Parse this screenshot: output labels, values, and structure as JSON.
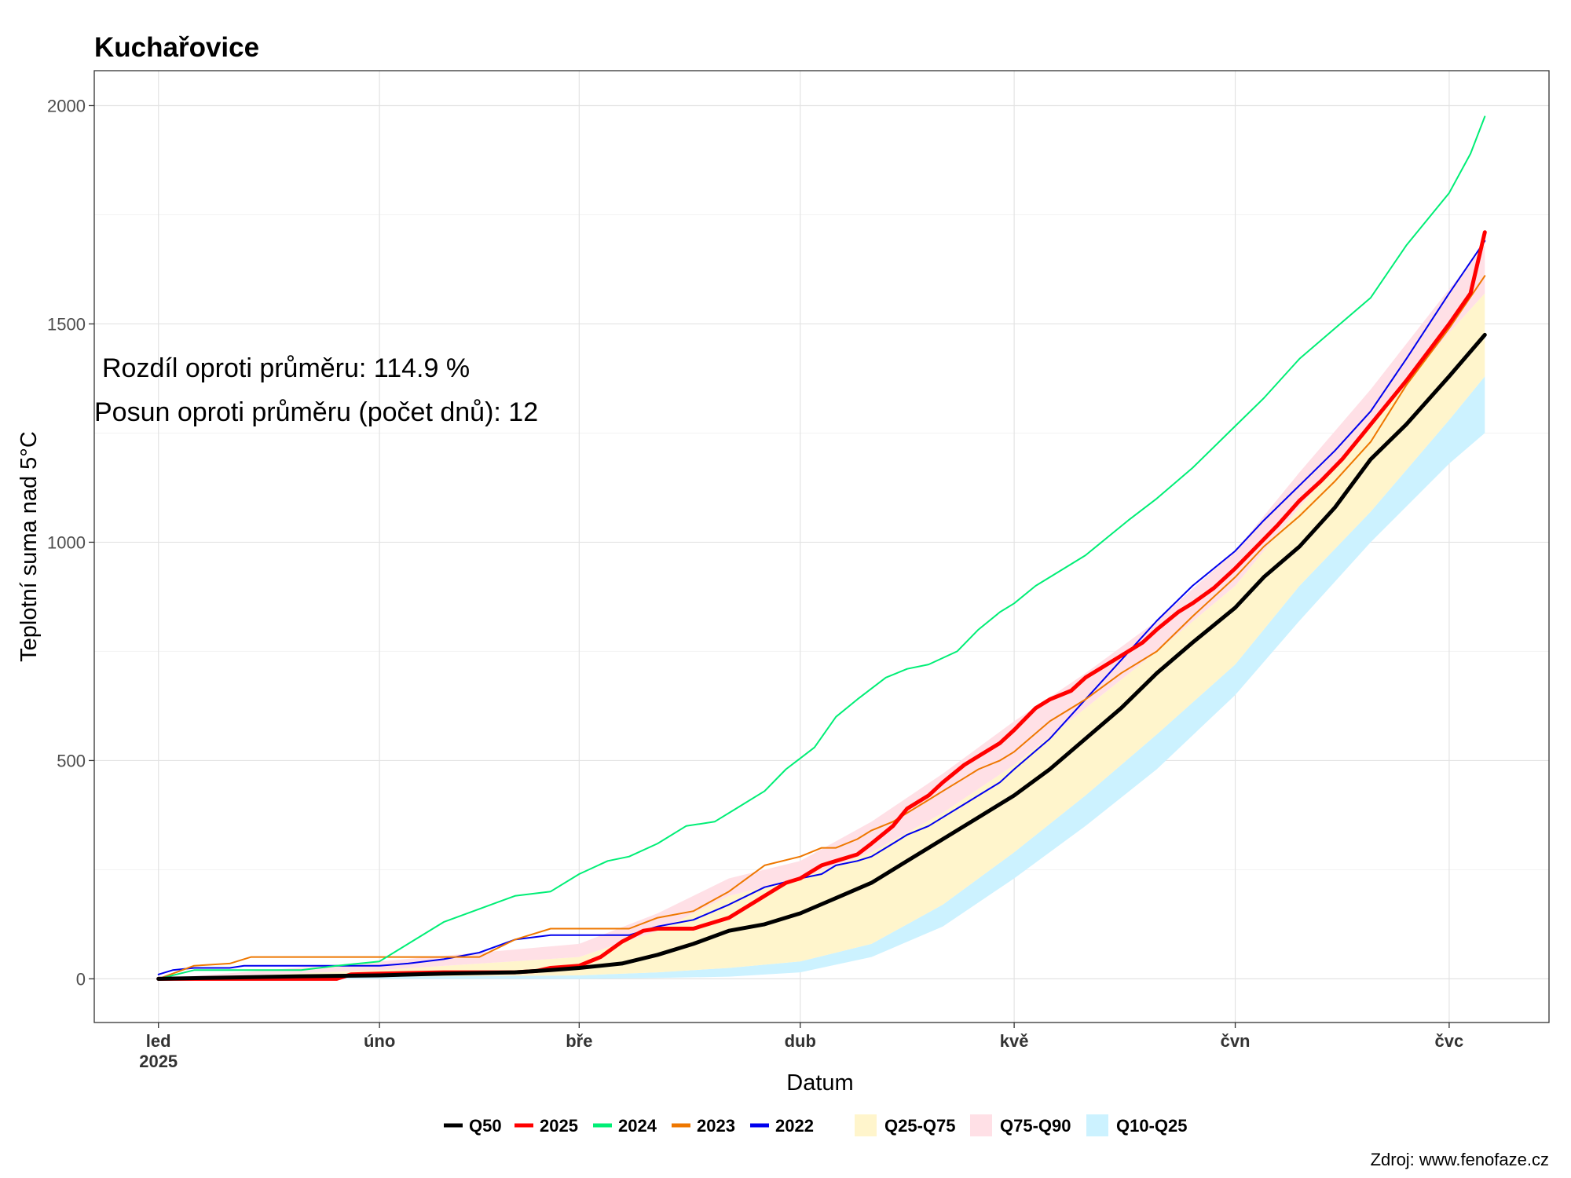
{
  "chart_data": {
    "type": "line",
    "title": "Kuchařovice",
    "xlabel": "Datum",
    "ylabel": "Teplotní suma nad 5°C",
    "source": "Zdroj: www.fenofaze.cz",
    "annotations": [
      "Rozdíl oproti průměru: 114.9 %",
      "Posun oproti průměru (počet dnů): 12"
    ],
    "x_ticks": [
      {
        "day": 0,
        "label": "led",
        "sublabel": "2025"
      },
      {
        "day": 31,
        "label": "úno"
      },
      {
        "day": 59,
        "label": "bře"
      },
      {
        "day": 90,
        "label": "dub"
      },
      {
        "day": 120,
        "label": "kvě"
      },
      {
        "day": 151,
        "label": "čvn"
      },
      {
        "day": 181,
        "label": "čvc"
      }
    ],
    "xlim": [
      -9,
      195
    ],
    "ylim": [
      -100,
      2080
    ],
    "y_ticks": [
      0,
      500,
      1000,
      1500,
      2000
    ],
    "grid": true,
    "legend_position": "bottom",
    "bands": [
      {
        "name": "Q10-Q25",
        "color": "#ccf2ff",
        "x": [
          0,
          31,
          59,
          70,
          80,
          90,
          100,
          110,
          120,
          130,
          140,
          151,
          160,
          170,
          181,
          186
        ],
        "lower": [
          0,
          0,
          0,
          2,
          5,
          15,
          50,
          120,
          230,
          350,
          480,
          650,
          820,
          1000,
          1180,
          1250
        ],
        "upper": [
          0,
          5,
          8,
          15,
          25,
          40,
          80,
          170,
          290,
          420,
          560,
          720,
          900,
          1070,
          1280,
          1380
        ]
      },
      {
        "name": "Q25-Q75",
        "color": "#fff5cc",
        "x": [
          0,
          31,
          59,
          70,
          80,
          90,
          100,
          110,
          120,
          130,
          140,
          151,
          160,
          170,
          181,
          186
        ],
        "lower": [
          0,
          5,
          8,
          15,
          25,
          40,
          80,
          170,
          290,
          420,
          560,
          720,
          900,
          1070,
          1280,
          1380
        ],
        "upper": [
          0,
          20,
          50,
          110,
          190,
          230,
          290,
          380,
          490,
          620,
          750,
          900,
          1080,
          1270,
          1480,
          1570
        ]
      },
      {
        "name": "Q75-Q90",
        "color": "#ffe0e6",
        "x": [
          0,
          31,
          59,
          70,
          80,
          90,
          100,
          110,
          120,
          130,
          140,
          151,
          160,
          170,
          181,
          186
        ],
        "lower": [
          0,
          20,
          50,
          110,
          190,
          230,
          290,
          380,
          490,
          620,
          750,
          900,
          1080,
          1270,
          1480,
          1570
        ],
        "upper": [
          0,
          40,
          80,
          150,
          230,
          270,
          360,
          470,
          590,
          700,
          820,
          980,
          1160,
          1350,
          1580,
          1680
        ]
      }
    ],
    "series": [
      {
        "name": "Q50",
        "color": "#000000",
        "width": 5,
        "x": [
          0,
          10,
          20,
          31,
          40,
          50,
          55,
          59,
          65,
          70,
          75,
          80,
          85,
          90,
          95,
          100,
          105,
          110,
          115,
          120,
          125,
          130,
          135,
          140,
          145,
          151,
          155,
          160,
          165,
          170,
          175,
          181,
          186
        ],
        "y": [
          0,
          3,
          6,
          8,
          12,
          15,
          20,
          25,
          35,
          55,
          80,
          110,
          125,
          150,
          185,
          220,
          270,
          320,
          370,
          420,
          480,
          550,
          620,
          700,
          770,
          850,
          920,
          990,
          1080,
          1190,
          1270,
          1380,
          1475
        ]
      },
      {
        "name": "2025",
        "color": "#ff0000",
        "width": 5,
        "x": [
          0,
          10,
          20,
          25,
          27,
          31,
          40,
          50,
          53,
          55,
          59,
          62,
          65,
          68,
          70,
          75,
          80,
          85,
          88,
          90,
          93,
          95,
          98,
          100,
          103,
          105,
          108,
          110,
          113,
          115,
          118,
          120,
          123,
          125,
          128,
          130,
          133,
          135,
          138,
          140,
          143,
          145,
          148,
          151,
          154,
          157,
          160,
          163,
          166,
          169,
          172,
          175,
          178,
          181,
          184,
          186
        ],
        "y": [
          0,
          0,
          0,
          0,
          10,
          12,
          15,
          15,
          18,
          25,
          30,
          50,
          85,
          110,
          115,
          115,
          140,
          190,
          220,
          230,
          260,
          270,
          285,
          310,
          350,
          390,
          420,
          450,
          490,
          510,
          540,
          570,
          620,
          640,
          660,
          690,
          720,
          740,
          770,
          800,
          840,
          860,
          895,
          940,
          990,
          1040,
          1095,
          1140,
          1190,
          1250,
          1310,
          1370,
          1435,
          1500,
          1570,
          1710
        ]
      },
      {
        "name": "2024",
        "color": "#00ee76",
        "width": 2,
        "x": [
          0,
          5,
          10,
          20,
          25,
          31,
          35,
          40,
          45,
          50,
          55,
          59,
          63,
          66,
          70,
          74,
          78,
          81,
          85,
          88,
          92,
          95,
          98,
          102,
          105,
          108,
          112,
          115,
          118,
          120,
          123,
          126,
          130,
          133,
          136,
          140,
          145,
          150,
          155,
          160,
          165,
          170,
          175,
          181,
          184,
          186
        ],
        "y": [
          0,
          20,
          20,
          20,
          30,
          40,
          80,
          130,
          160,
          190,
          200,
          240,
          270,
          280,
          310,
          350,
          360,
          390,
          430,
          480,
          530,
          600,
          640,
          690,
          710,
          720,
          750,
          800,
          840,
          860,
          900,
          930,
          970,
          1010,
          1050,
          1100,
          1170,
          1250,
          1330,
          1420,
          1490,
          1560,
          1680,
          1800,
          1890,
          1975
        ]
      },
      {
        "name": "2023",
        "color": "#ee7700",
        "width": 2,
        "x": [
          0,
          5,
          10,
          13,
          20,
          31,
          40,
          45,
          50,
          55,
          59,
          66,
          70,
          75,
          80,
          85,
          90,
          93,
          95,
          98,
          100,
          103,
          105,
          108,
          110,
          113,
          115,
          118,
          120,
          125,
          130,
          135,
          140,
          145,
          151,
          155,
          160,
          165,
          170,
          175,
          181,
          186
        ],
        "y": [
          0,
          30,
          35,
          50,
          50,
          50,
          50,
          50,
          90,
          115,
          115,
          115,
          140,
          155,
          200,
          260,
          280,
          300,
          300,
          320,
          340,
          360,
          380,
          410,
          430,
          460,
          480,
          500,
          520,
          590,
          640,
          700,
          750,
          830,
          920,
          990,
          1060,
          1140,
          1230,
          1360,
          1490,
          1610
        ]
      },
      {
        "name": "2022",
        "color": "#0000ee",
        "width": 2,
        "x": [
          0,
          2,
          5,
          10,
          12,
          20,
          31,
          35,
          40,
          45,
          50,
          55,
          59,
          66,
          70,
          75,
          80,
          85,
          90,
          93,
          95,
          98,
          100,
          103,
          105,
          108,
          110,
          113,
          115,
          118,
          120,
          125,
          130,
          135,
          140,
          145,
          151,
          155,
          160,
          165,
          170,
          175,
          181,
          186
        ],
        "y": [
          10,
          20,
          25,
          25,
          30,
          30,
          30,
          35,
          45,
          60,
          90,
          100,
          100,
          100,
          120,
          135,
          170,
          210,
          230,
          240,
          260,
          270,
          280,
          310,
          330,
          350,
          370,
          400,
          420,
          450,
          480,
          550,
          640,
          730,
          820,
          900,
          980,
          1050,
          1130,
          1210,
          1300,
          1420,
          1570,
          1690
        ]
      }
    ],
    "legend": [
      {
        "label": "Q50",
        "kind": "line",
        "color": "#000000"
      },
      {
        "label": "2025",
        "kind": "line",
        "color": "#ff0000"
      },
      {
        "label": "2024",
        "kind": "line",
        "color": "#00ee76"
      },
      {
        "label": "2023",
        "kind": "line",
        "color": "#ee7700"
      },
      {
        "label": "2022",
        "kind": "line",
        "color": "#0000ee"
      },
      {
        "label": "Q25-Q75",
        "kind": "fill",
        "color": "#fff5cc"
      },
      {
        "label": "Q75-Q90",
        "kind": "fill",
        "color": "#ffe0e6"
      },
      {
        "label": "Q10-Q25",
        "kind": "fill",
        "color": "#ccf2ff"
      }
    ]
  }
}
